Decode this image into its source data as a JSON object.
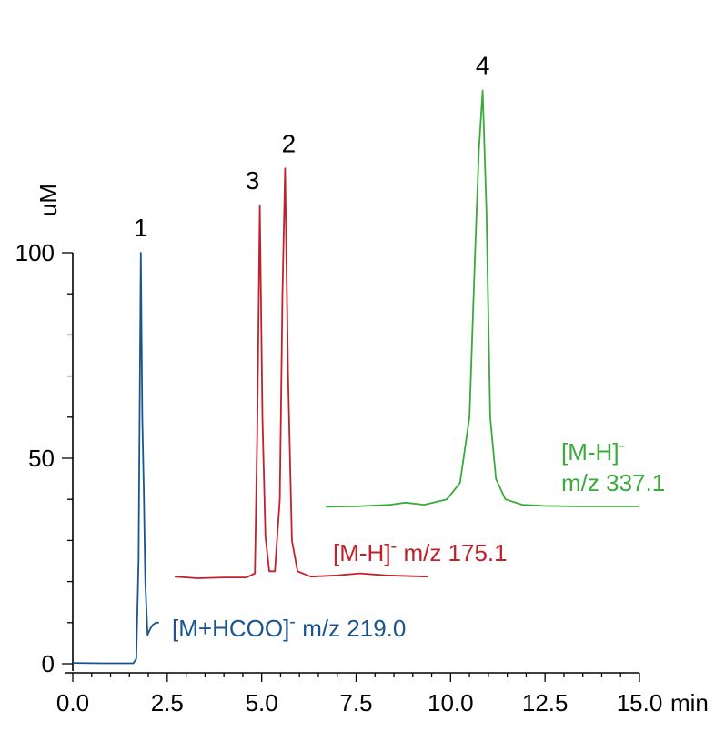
{
  "chart_data": {
    "type": "line",
    "xlabel": "min",
    "ylabel": "uM",
    "xlim": [
      0,
      15
    ],
    "ylim": [
      0,
      100
    ],
    "x_ticks": [
      "0.0",
      "2.5",
      "5.0",
      "7.5",
      "10.0",
      "12.5",
      "15.0"
    ],
    "y_ticks": [
      "0",
      "50",
      "100"
    ],
    "series": [
      {
        "color": "#1a5590",
        "annotation": {
          "text": "[M+HCOO]",
          "superscript": "-",
          "suffix": " m/z 219.0"
        },
        "x": [
          0.0,
          0.8,
          1.6,
          1.68,
          1.74,
          1.8,
          1.84,
          1.88,
          1.92,
          1.98,
          2.05,
          2.12,
          2.2,
          2.28
        ],
        "y": [
          0.2,
          0.1,
          0.1,
          1.2,
          25.0,
          100.0,
          60.0,
          42.0,
          20.0,
          7.0,
          8.5,
          9.5,
          10.0,
          10.0
        ]
      },
      {
        "color": "#c0222c",
        "annotation": {
          "text": "[M-H]",
          "superscript": "-",
          "suffix": " m/z 175.1"
        },
        "x": [
          2.7,
          3.3,
          4.0,
          4.6,
          4.82,
          4.88,
          4.95,
          5.02,
          5.1,
          5.2,
          5.35,
          5.48,
          5.55,
          5.62,
          5.7,
          5.8,
          5.95,
          6.3,
          7.0,
          7.6,
          8.3,
          9.4
        ],
        "y": [
          21.2,
          20.8,
          21.0,
          21.0,
          22.0,
          55.0,
          111.5,
          60.0,
          31.0,
          22.5,
          22.5,
          40.0,
          90.0,
          120.5,
          70.0,
          30.0,
          22.5,
          21.2,
          21.5,
          22.0,
          21.5,
          21.2
        ],
        "peaks": [
          {
            "label": "3",
            "x": 4.95,
            "y": 111.5
          },
          {
            "label": "2",
            "x": 5.62,
            "y": 120.5
          }
        ]
      },
      {
        "color": "#3aaa3a",
        "annotation": {
          "lines": [
            "[M-H]",
            "m/z 337.1"
          ],
          "superscript": "-"
        },
        "x": [
          6.7,
          7.5,
          8.4,
          8.8,
          9.3,
          9.9,
          10.25,
          10.5,
          10.65,
          10.75,
          10.85,
          10.95,
          11.05,
          11.2,
          11.45,
          11.9,
          12.5,
          13.3,
          15.0
        ],
        "y": [
          38.2,
          38.3,
          38.7,
          39.2,
          38.7,
          40.0,
          44.0,
          60.0,
          100.0,
          125.0,
          139.5,
          110.0,
          60.0,
          45.0,
          40.0,
          38.7,
          38.4,
          38.3,
          38.3
        ],
        "peaks": [
          {
            "label": "4",
            "x": 10.85,
            "y": 139.5
          }
        ]
      }
    ],
    "peak_labels": [
      {
        "label": "1",
        "x": 1.8,
        "y": 100.0
      }
    ]
  }
}
